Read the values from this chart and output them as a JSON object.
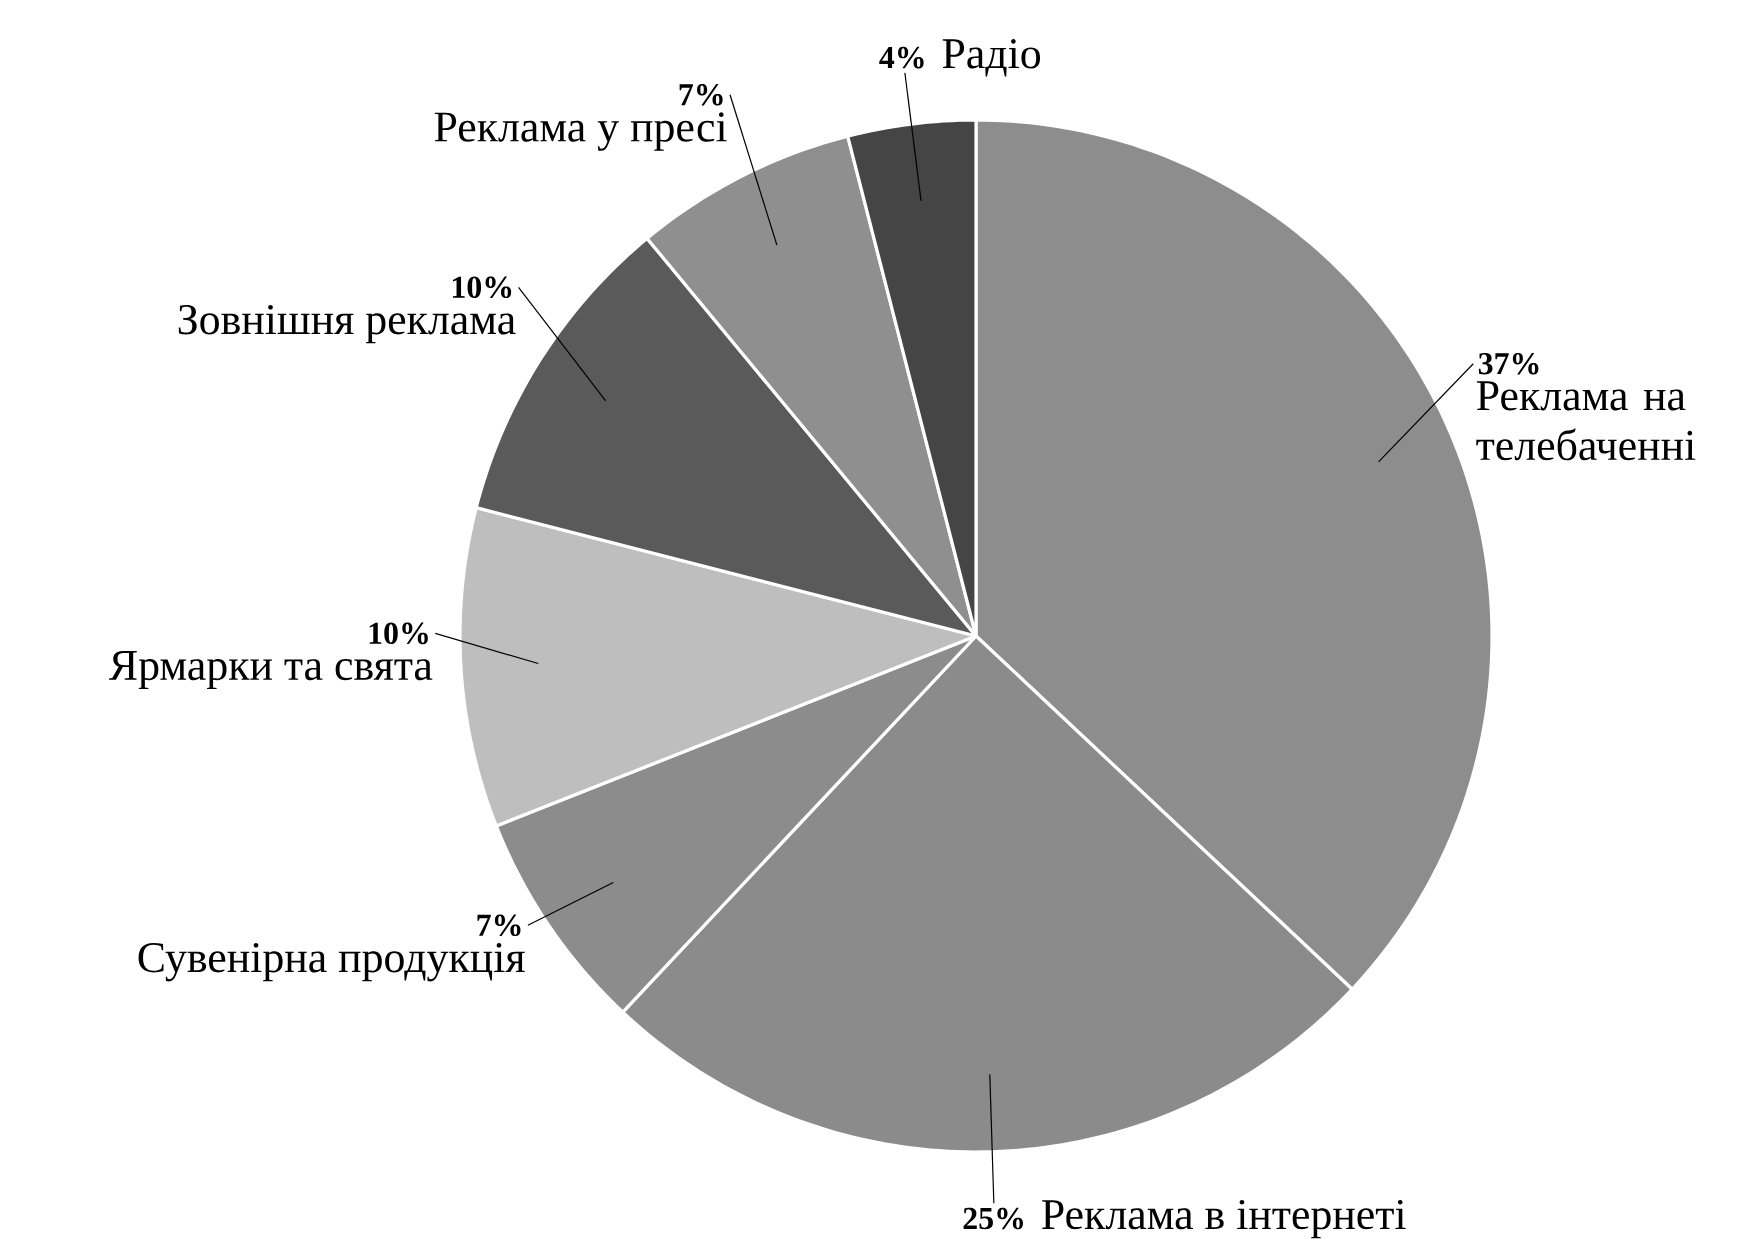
{
  "chart_data": {
    "type": "pie",
    "categories": [
      "Реклама на телебаченні",
      "Реклама в інтернеті",
      "Сувенірна продукція",
      "Ярмарки та свята",
      "Зовнішня реклама",
      "Реклама у пресі",
      "Радіо"
    ],
    "values": [
      37,
      25,
      7,
      10,
      10,
      7,
      4
    ],
    "value_labels": [
      "37%",
      "25%",
      "7%",
      "10%",
      "10%",
      "7%",
      "4%"
    ],
    "colors": [
      "#8d8d8d",
      "#8b8b8b",
      "#8c8c8c",
      "#bebebe",
      "#5a5a5a",
      "#8f8f8f",
      "#454545"
    ]
  }
}
